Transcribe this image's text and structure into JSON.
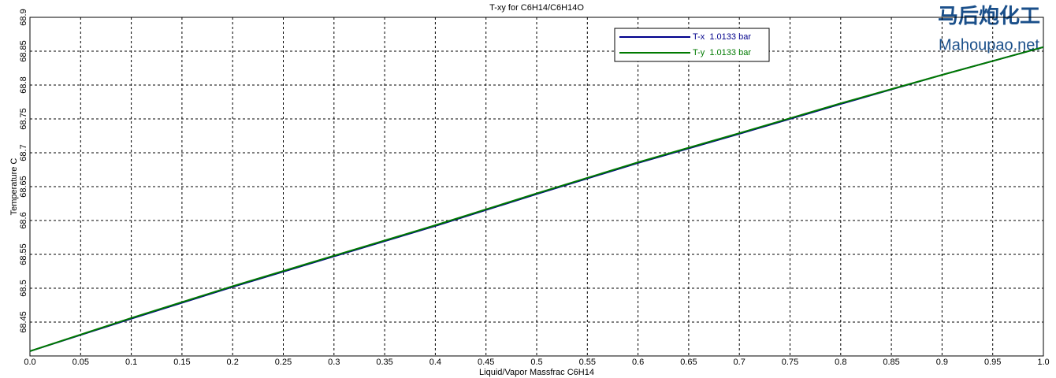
{
  "chart_data": {
    "type": "line",
    "title": "T-xy for C6H14/C6H14O",
    "x_label": "Liquid/Vapor Massfrac C6H14",
    "y_label": "Temperature C",
    "x": [
      0,
      0.1,
      0.2,
      0.3,
      0.4,
      0.5,
      0.6,
      0.7,
      0.8,
      0.9,
      1
    ],
    "series": [
      {
        "name": "T-x  1.0133 bar",
        "color": "#00008b",
        "values": [
          68.407,
          68.455,
          68.502,
          68.547,
          68.592,
          68.639,
          68.685,
          68.728,
          68.772,
          68.815,
          68.856
        ]
      },
      {
        "name": "T-y  1.0133 bar",
        "color": "#007a00",
        "values": [
          68.407,
          68.456,
          68.503,
          68.548,
          68.593,
          68.64,
          68.686,
          68.729,
          68.773,
          68.815,
          68.856
        ]
      }
    ],
    "xlim": [
      0,
      1
    ],
    "ylim": [
      68.4,
      68.9
    ],
    "xticks": [
      {
        "value": 0,
        "label": "0.0"
      },
      0.05,
      0.1,
      0.15,
      0.2,
      0.25,
      0.3,
      0.35,
      0.4,
      0.45,
      0.5,
      0.55,
      0.6,
      0.65,
      0.7,
      0.75,
      0.8,
      0.85,
      0.9,
      0.95,
      {
        "value": 1,
        "label": "1.0"
      }
    ],
    "yticks": [
      68.45,
      68.5,
      68.55,
      68.6,
      68.65,
      68.7,
      68.75,
      68.8,
      68.85,
      68.9
    ],
    "grid": true,
    "legend": "top-right"
  },
  "watermark": {
    "logo_text": "马后炮化工",
    "site": "Mahoupao.net"
  }
}
